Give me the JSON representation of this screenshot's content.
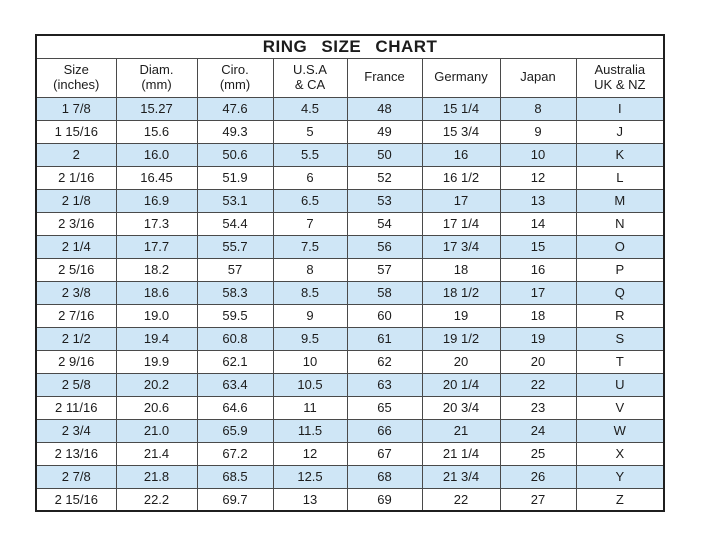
{
  "colors": {
    "stripe": "#cfe6f6",
    "border": "#4a4a4a",
    "border_outer": "#1f1f1f",
    "text": "#1c1c1c",
    "background": "#ffffff"
  },
  "table": {
    "header_lines": [
      [
        "Size",
        "(inches)"
      ],
      [
        "Diam.",
        "(mm)"
      ],
      [
        "Ciro.",
        "(mm)"
      ],
      [
        "U.S.A",
        "& CA"
      ],
      [
        "France"
      ],
      [
        "Germany"
      ],
      [
        "Japan"
      ],
      [
        "Australia",
        "UK & NZ"
      ]
    ]
  },
  "chart_data": {
    "type": "table",
    "title": "RING SIZE CHART",
    "columns": [
      "Size (inches)",
      "Diam. (mm)",
      "Ciro. (mm)",
      "U.S.A & CA",
      "France",
      "Germany",
      "Japan",
      "Australia UK & NZ"
    ],
    "rows": [
      [
        "1 7/8",
        "15.27",
        "47.6",
        "4.5",
        "48",
        "15 1/4",
        "8",
        "I"
      ],
      [
        "1 15/16",
        "15.6",
        "49.3",
        "5",
        "49",
        "15 3/4",
        "9",
        "J"
      ],
      [
        "2",
        "16.0",
        "50.6",
        "5.5",
        "50",
        "16",
        "10",
        "K"
      ],
      [
        "2 1/16",
        "16.45",
        "51.9",
        "6",
        "52",
        "16 1/2",
        "12",
        "L"
      ],
      [
        "2 1/8",
        "16.9",
        "53.1",
        "6.5",
        "53",
        "17",
        "13",
        "M"
      ],
      [
        "2 3/16",
        "17.3",
        "54.4",
        "7",
        "54",
        "17 1/4",
        "14",
        "N"
      ],
      [
        "2 1/4",
        "17.7",
        "55.7",
        "7.5",
        "56",
        "17 3/4",
        "15",
        "O"
      ],
      [
        "2 5/16",
        "18.2",
        "57",
        "8",
        "57",
        "18",
        "16",
        "P"
      ],
      [
        "2 3/8",
        "18.6",
        "58.3",
        "8.5",
        "58",
        "18 1/2",
        "17",
        "Q"
      ],
      [
        "2 7/16",
        "19.0",
        "59.5",
        "9",
        "60",
        "19",
        "18",
        "R"
      ],
      [
        "2 1/2",
        "19.4",
        "60.8",
        "9.5",
        "61",
        "19 1/2",
        "19",
        "S"
      ],
      [
        "2 9/16",
        "19.9",
        "62.1",
        "10",
        "62",
        "20",
        "20",
        "T"
      ],
      [
        "2 5/8",
        "20.2",
        "63.4",
        "10.5",
        "63",
        "20 1/4",
        "22",
        "U"
      ],
      [
        "2 11/16",
        "20.6",
        "64.6",
        "11",
        "65",
        "20 3/4",
        "23",
        "V"
      ],
      [
        "2 3/4",
        "21.0",
        "65.9",
        "11.5",
        "66",
        "21",
        "24",
        "W"
      ],
      [
        "2 13/16",
        "21.4",
        "67.2",
        "12",
        "67",
        "21 1/4",
        "25",
        "X"
      ],
      [
        "2 7/8",
        "21.8",
        "68.5",
        "12.5",
        "68",
        "21 3/4",
        "26",
        "Y"
      ],
      [
        "2 15/16",
        "22.2",
        "69.7",
        "13",
        "69",
        "22",
        "27",
        "Z"
      ]
    ],
    "stripe_pattern": "odd rows (1st, 3rd, ...) have light blue background",
    "legend_position": "none",
    "grid": true
  }
}
